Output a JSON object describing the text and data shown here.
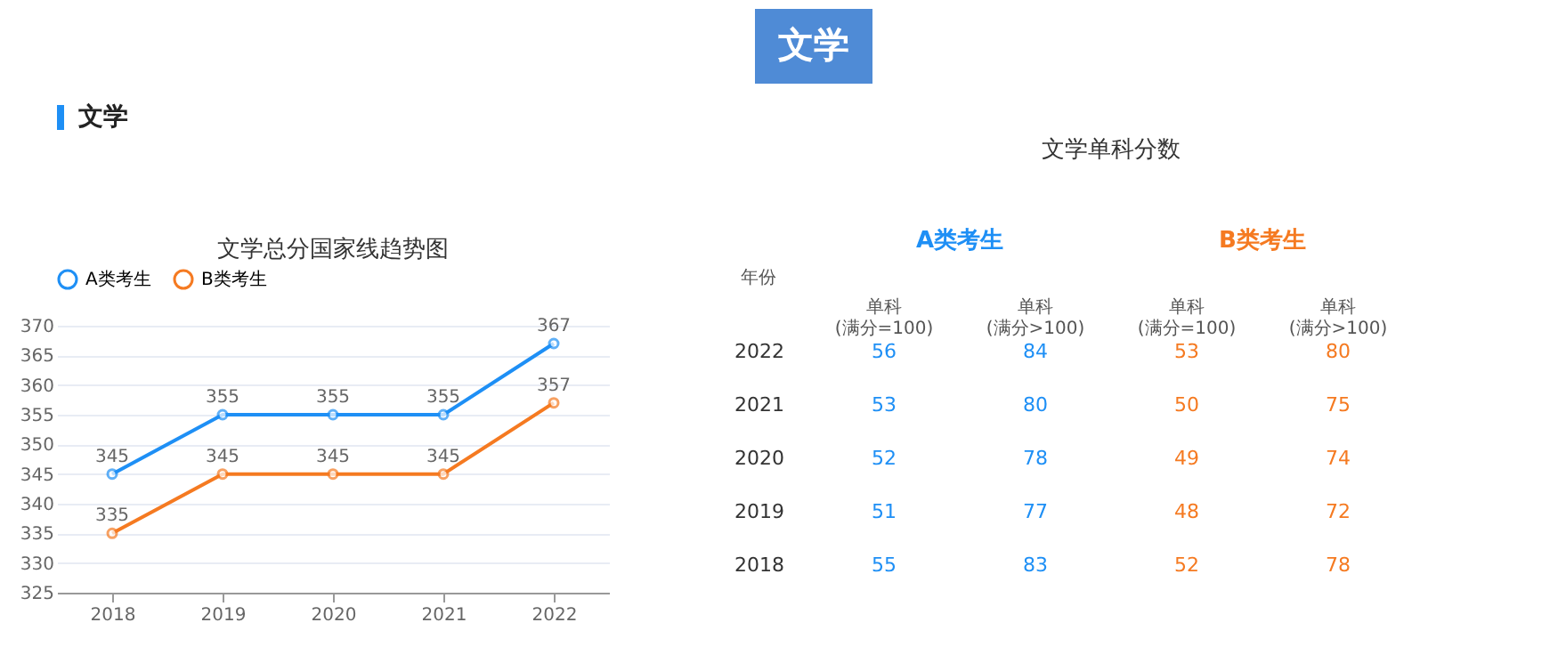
{
  "chart_data": [
    {
      "type": "line",
      "title": "文学总分国家线趋势图",
      "annotations": [
        "文学",
        "文学"
      ],
      "categories": [
        "2018",
        "2019",
        "2020",
        "2021",
        "2022"
      ],
      "series": [
        {
          "name": "A类考生",
          "color": "#1e8ff5",
          "values": [
            345,
            355,
            355,
            355,
            367
          ]
        },
        {
          "name": "B类考生",
          "color": "#f57a21",
          "values": [
            335,
            345,
            345,
            345,
            357
          ]
        }
      ],
      "ylim": [
        325,
        370
      ],
      "yticks": [
        325,
        330,
        335,
        340,
        345,
        350,
        355,
        360,
        365,
        370
      ],
      "grid": "y",
      "legend": "top",
      "marker": "circle",
      "line_style": "solid",
      "data_labels": true
    },
    {
      "type": "heatmap",
      "title": "文学单科分数",
      "annotations": [
        "A类考生",
        "B类考生",
        "年份"
      ],
      "categories": [
        "单科\n(满分=100)",
        "单科\n(满分>100)",
        "单科\n(满分=100)",
        "单科\n(满分>100)"
      ],
      "y_categories": [
        "2022",
        "2021",
        "2020",
        "2019",
        "2018"
      ],
      "colors": [
        "#1e8ff5",
        "#1e8ff5",
        "#f57a21",
        "#f57a21"
      ],
      "cells": [
        [
          56,
          84,
          53,
          80
        ],
        [
          53,
          80,
          50,
          75
        ],
        [
          52,
          78,
          49,
          74
        ],
        [
          51,
          77,
          48,
          72
        ],
        [
          55,
          83,
          52,
          78
        ]
      ],
      "data_labels": true
    }
  ]
}
